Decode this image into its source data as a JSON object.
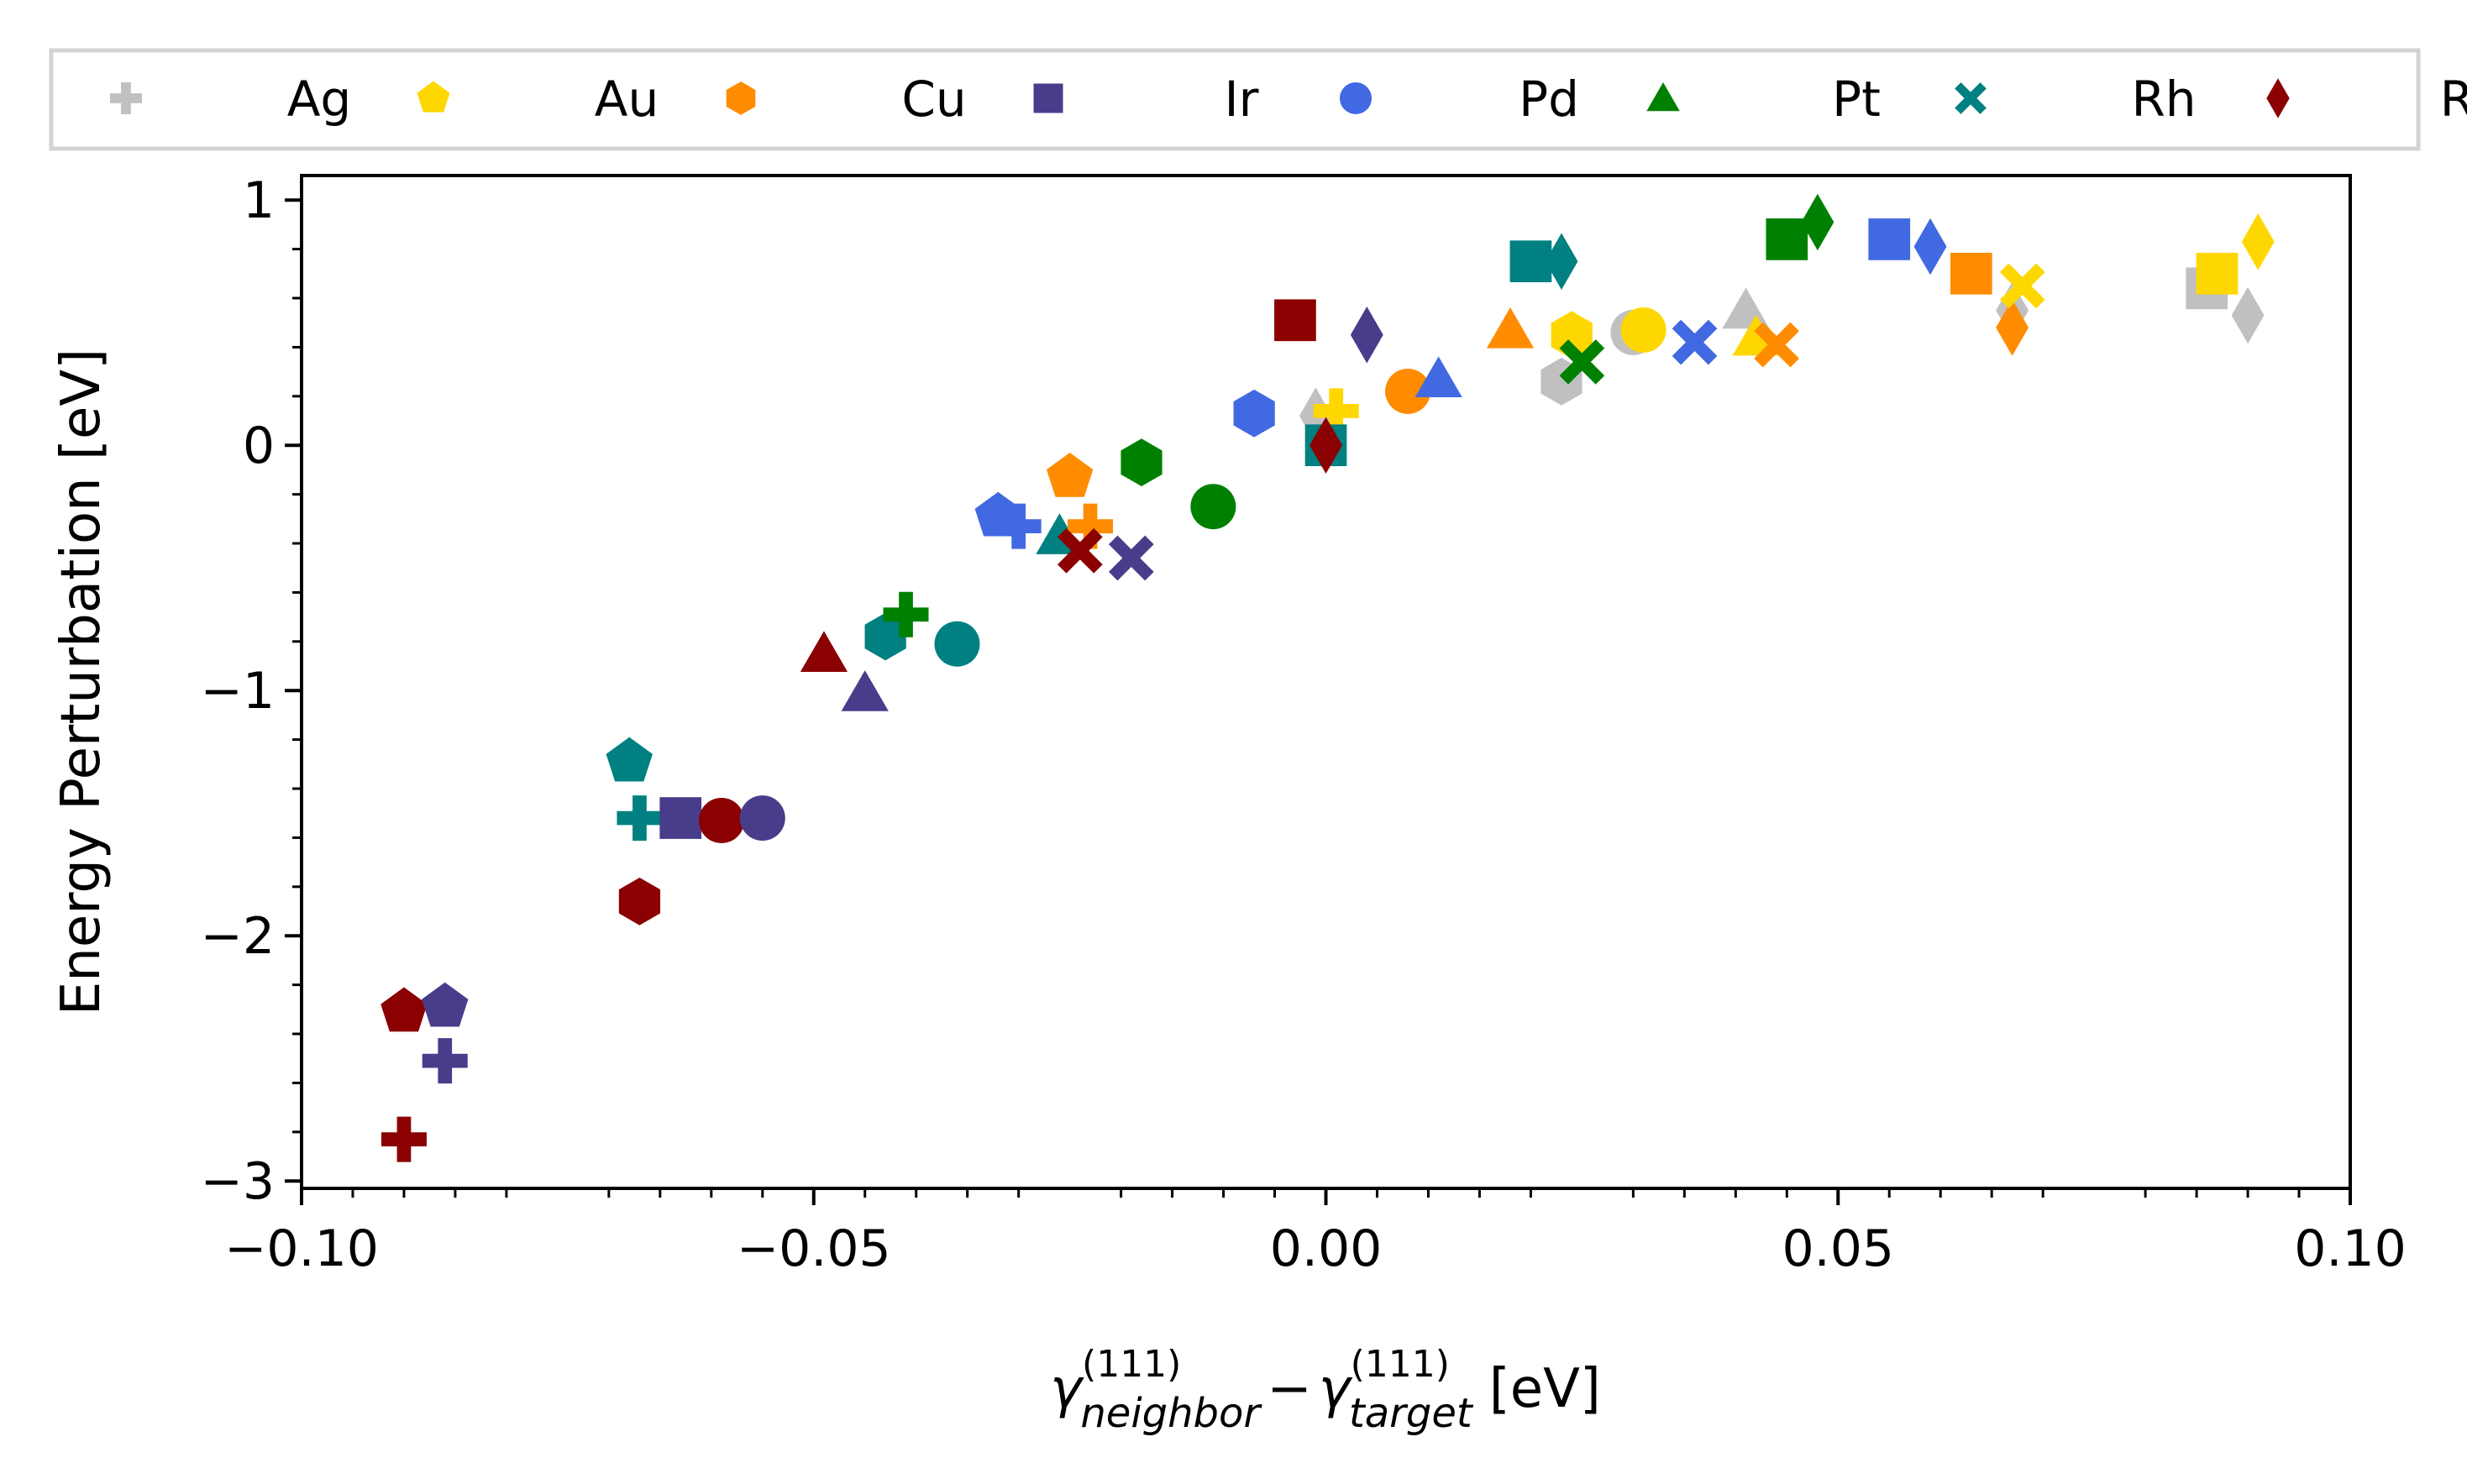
{
  "chart_data": {
    "type": "scatter",
    "title": "",
    "xlabel_parts": {
      "g1": "γ",
      "sup1": "(111)",
      "sub1": "neighbor",
      "minus": "−",
      "g2": "γ",
      "sup2": "(111)",
      "sub2": "target",
      "unit": "[eV]"
    },
    "ylabel": "Energy Perturbation [eV]",
    "xlim": [
      -0.1,
      0.1
    ],
    "ylim": [
      -3.03,
      1.1
    ],
    "xticks": [
      -0.1,
      -0.05,
      0.0,
      0.05,
      0.1
    ],
    "xtick_labels": [
      "−0.10",
      "−0.05",
      "0.00",
      "0.05",
      "0.10"
    ],
    "yticks": [
      -3,
      -2,
      -1,
      0,
      1
    ],
    "ytick_labels": [
      "−3",
      "−2",
      "−1",
      "0",
      "1"
    ],
    "grid": false,
    "legend_position": "top",
    "legend": [
      {
        "name": "Ag",
        "color": "#c0c0c0",
        "marker": "plus"
      },
      {
        "name": "Au",
        "color": "#ffd700",
        "marker": "pentagon"
      },
      {
        "name": "Cu",
        "color": "#ff8c00",
        "marker": "hexagon"
      },
      {
        "name": "Ir",
        "color": "#483d8b",
        "marker": "square"
      },
      {
        "name": "Pd",
        "color": "#4169e1",
        "marker": "circle"
      },
      {
        "name": "Pt",
        "color": "#008000",
        "marker": "triangle"
      },
      {
        "name": "Rh",
        "color": "#008080",
        "marker": "x"
      },
      {
        "name": "Ru",
        "color": "#8b0000",
        "marker": "diamond"
      }
    ],
    "points": [
      {
        "x": -0.09,
        "y": -2.31,
        "color": "#8b0000",
        "marker": "pentagon"
      },
      {
        "x": -0.086,
        "y": -2.29,
        "color": "#483d8b",
        "marker": "pentagon"
      },
      {
        "x": -0.086,
        "y": -2.51,
        "color": "#483d8b",
        "marker": "plus"
      },
      {
        "x": -0.09,
        "y": -2.83,
        "color": "#8b0000",
        "marker": "plus"
      },
      {
        "x": -0.068,
        "y": -1.29,
        "color": "#008080",
        "marker": "pentagon"
      },
      {
        "x": -0.067,
        "y": -1.52,
        "color": "#008080",
        "marker": "plus"
      },
      {
        "x": -0.067,
        "y": -1.86,
        "color": "#8b0000",
        "marker": "hexagon"
      },
      {
        "x": -0.063,
        "y": -1.52,
        "color": "#483d8b",
        "marker": "square"
      },
      {
        "x": -0.059,
        "y": -1.53,
        "color": "#8b0000",
        "marker": "circle"
      },
      {
        "x": -0.055,
        "y": -1.52,
        "color": "#483d8b",
        "marker": "circle"
      },
      {
        "x": -0.049,
        "y": -0.85,
        "color": "#8b0000",
        "marker": "triangle"
      },
      {
        "x": -0.045,
        "y": -1.01,
        "color": "#483d8b",
        "marker": "triangle"
      },
      {
        "x": -0.043,
        "y": -0.78,
        "color": "#008080",
        "marker": "hexagon"
      },
      {
        "x": -0.041,
        "y": -0.69,
        "color": "#008000",
        "marker": "plus"
      },
      {
        "x": -0.036,
        "y": -0.81,
        "color": "#008080",
        "marker": "circle"
      },
      {
        "x": -0.032,
        "y": -0.29,
        "color": "#4169e1",
        "marker": "pentagon"
      },
      {
        "x": -0.03,
        "y": -0.33,
        "color": "#4169e1",
        "marker": "plus"
      },
      {
        "x": -0.025,
        "y": -0.13,
        "color": "#ff8c00",
        "marker": "pentagon"
      },
      {
        "x": -0.026,
        "y": -0.37,
        "color": "#008080",
        "marker": "triangle"
      },
      {
        "x": -0.023,
        "y": -0.33,
        "color": "#ff8c00",
        "marker": "plus"
      },
      {
        "x": -0.024,
        "y": -0.43,
        "color": "#8b0000",
        "marker": "x"
      },
      {
        "x": -0.019,
        "y": -0.46,
        "color": "#483d8b",
        "marker": "x"
      },
      {
        "x": -0.018,
        "y": -0.07,
        "color": "#008000",
        "marker": "hexagon"
      },
      {
        "x": -0.011,
        "y": -0.25,
        "color": "#008000",
        "marker": "circle"
      },
      {
        "x": -0.007,
        "y": 0.13,
        "color": "#4169e1",
        "marker": "hexagon"
      },
      {
        "x": -0.003,
        "y": 0.51,
        "color": "#8b0000",
        "marker": "square"
      },
      {
        "x": -0.001,
        "y": 0.12,
        "color": "#c0c0c0",
        "marker": "diamond"
      },
      {
        "x": 0.001,
        "y": 0.14,
        "color": "#ffd700",
        "marker": "plus"
      },
      {
        "x": 0.0,
        "y": 0.0,
        "color": "#008080",
        "marker": "square"
      },
      {
        "x": 0.0,
        "y": 0.0,
        "color": "#8b0000",
        "marker": "diamond"
      },
      {
        "x": 0.004,
        "y": 0.45,
        "color": "#483d8b",
        "marker": "diamond"
      },
      {
        "x": 0.008,
        "y": 0.22,
        "color": "#ff8c00",
        "marker": "circle"
      },
      {
        "x": 0.011,
        "y": 0.27,
        "color": "#4169e1",
        "marker": "triangle"
      },
      {
        "x": 0.018,
        "y": 0.47,
        "color": "#ff8c00",
        "marker": "triangle"
      },
      {
        "x": 0.02,
        "y": 0.75,
        "color": "#008080",
        "marker": "square"
      },
      {
        "x": 0.023,
        "y": 0.75,
        "color": "#008080",
        "marker": "diamond"
      },
      {
        "x": 0.023,
        "y": 0.26,
        "color": "#c0c0c0",
        "marker": "hexagon"
      },
      {
        "x": 0.024,
        "y": 0.45,
        "color": "#ffd700",
        "marker": "hexagon"
      },
      {
        "x": 0.025,
        "y": 0.34,
        "color": "#008000",
        "marker": "x"
      },
      {
        "x": 0.03,
        "y": 0.46,
        "color": "#c0c0c0",
        "marker": "circle"
      },
      {
        "x": 0.031,
        "y": 0.47,
        "color": "#ffd700",
        "marker": "circle"
      },
      {
        "x": 0.036,
        "y": 0.42,
        "color": "#4169e1",
        "marker": "x"
      },
      {
        "x": 0.041,
        "y": 0.55,
        "color": "#c0c0c0",
        "marker": "triangle"
      },
      {
        "x": 0.042,
        "y": 0.44,
        "color": "#ffd700",
        "marker": "triangle"
      },
      {
        "x": 0.044,
        "y": 0.41,
        "color": "#ff8c00",
        "marker": "x"
      },
      {
        "x": 0.045,
        "y": 0.84,
        "color": "#008000",
        "marker": "square"
      },
      {
        "x": 0.048,
        "y": 0.91,
        "color": "#008000",
        "marker": "diamond"
      },
      {
        "x": 0.055,
        "y": 0.84,
        "color": "#4169e1",
        "marker": "square"
      },
      {
        "x": 0.059,
        "y": 0.81,
        "color": "#4169e1",
        "marker": "diamond"
      },
      {
        "x": 0.063,
        "y": 0.7,
        "color": "#ff8c00",
        "marker": "square"
      },
      {
        "x": 0.067,
        "y": 0.55,
        "color": "#c0c0c0",
        "marker": "diamond"
      },
      {
        "x": 0.067,
        "y": 0.48,
        "color": "#ff8c00",
        "marker": "diamond"
      },
      {
        "x": 0.068,
        "y": 0.65,
        "color": "#ffd700",
        "marker": "x"
      },
      {
        "x": 0.086,
        "y": 0.64,
        "color": "#c0c0c0",
        "marker": "square"
      },
      {
        "x": 0.087,
        "y": 0.7,
        "color": "#ffd700",
        "marker": "square"
      },
      {
        "x": 0.09,
        "y": 0.53,
        "color": "#c0c0c0",
        "marker": "diamond"
      },
      {
        "x": 0.091,
        "y": 0.83,
        "color": "#ffd700",
        "marker": "diamond"
      }
    ]
  }
}
